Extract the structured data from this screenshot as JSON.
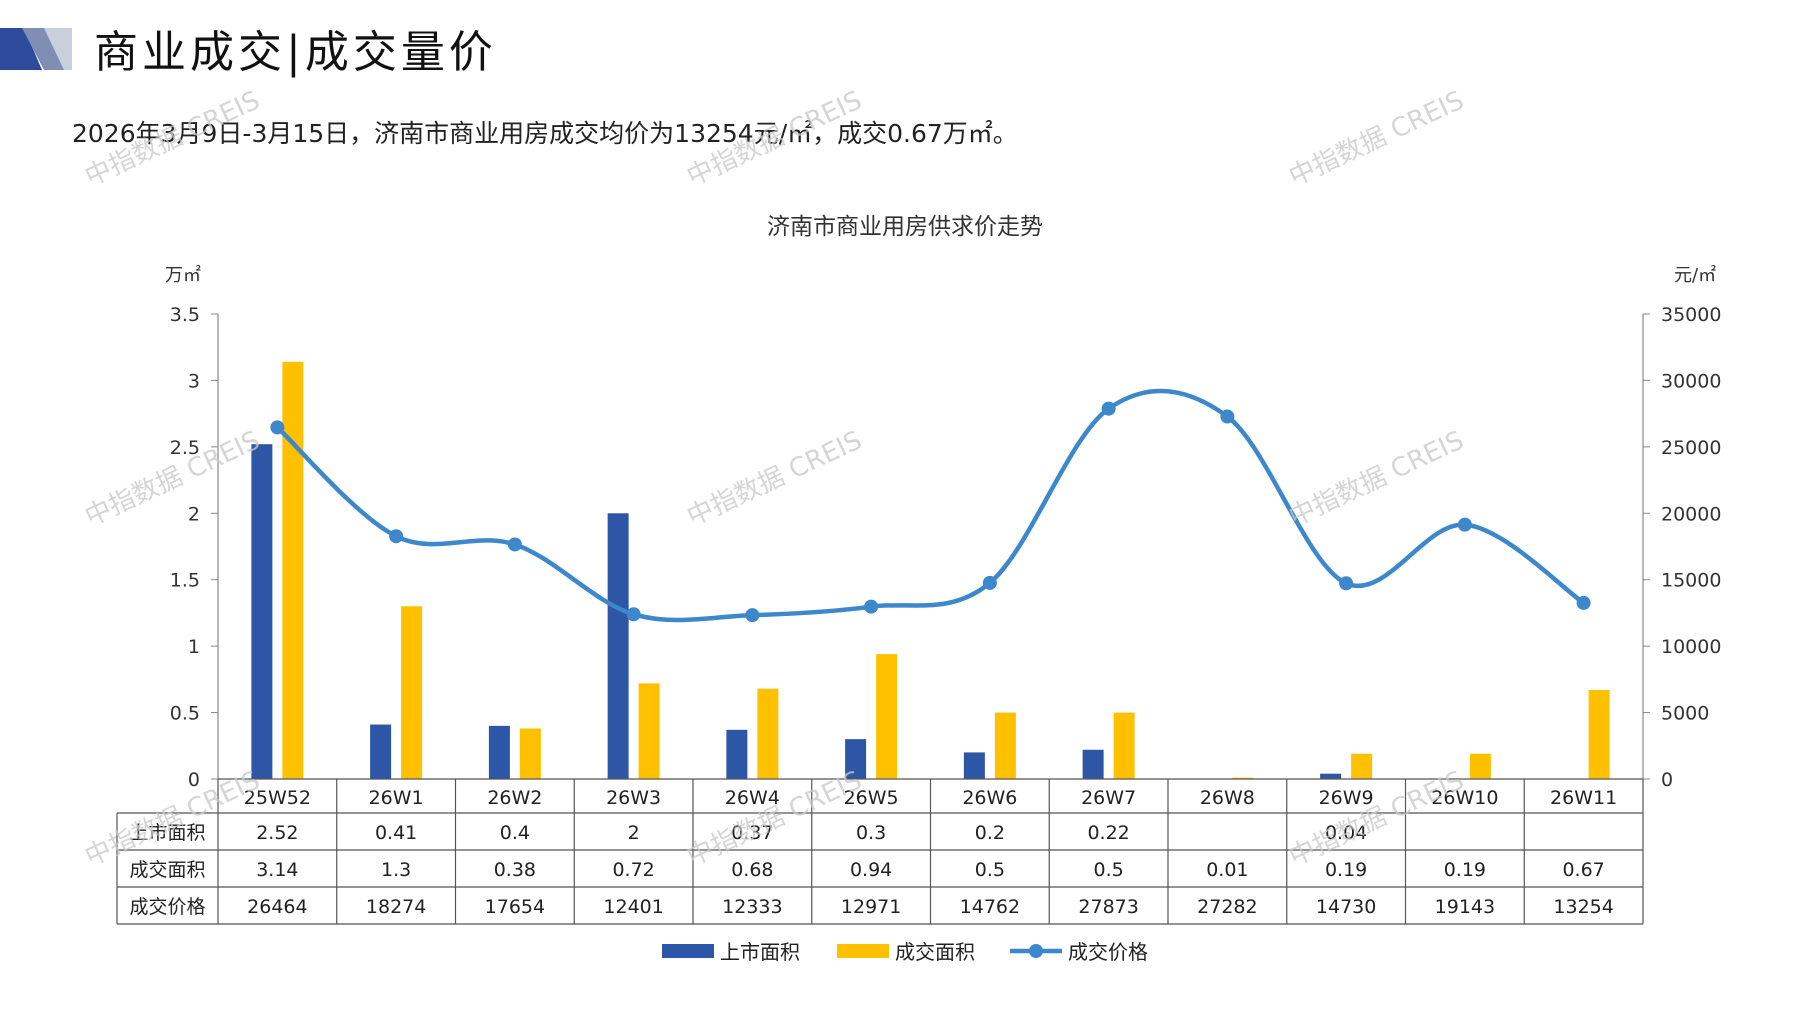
{
  "header": {
    "title": "商业成交|成交量价",
    "subtitle": "2026年3月9日-3月15日，济南市商业用房成交均价为13254元/㎡，成交0.67万㎡。"
  },
  "watermark": "中指数据 CREIS",
  "colors": {
    "supply": "#2E56A6",
    "deal_area": "#FFC000",
    "price": "#3D87CC",
    "header_dark": "#2E4A9A"
  },
  "chart_data": {
    "type": "bar",
    "title": "济南市商业用房供求价走势",
    "ylabel_left": "万㎡",
    "ylabel_right": "元/㎡",
    "ylim_left": [
      0,
      3.5
    ],
    "yticks_left": [
      "0",
      "0.5",
      "1",
      "1.5",
      "2",
      "2.5",
      "3",
      "3.5"
    ],
    "ylim_right": [
      0,
      35000
    ],
    "yticks_right": [
      "0",
      "5000",
      "10000",
      "15000",
      "20000",
      "25000",
      "30000",
      "35000"
    ],
    "categories": [
      "25W52",
      "26W1",
      "26W2",
      "26W3",
      "26W4",
      "26W5",
      "26W6",
      "26W7",
      "26W8",
      "26W9",
      "26W10",
      "26W11"
    ],
    "series": [
      {
        "name": "上市面积",
        "type": "bar",
        "axis": "left",
        "values": [
          2.52,
          0.41,
          0.4,
          2,
          0.37,
          0.3,
          0.2,
          0.22,
          null,
          0.04,
          null,
          null
        ]
      },
      {
        "name": "成交面积",
        "type": "bar",
        "axis": "left",
        "values": [
          3.14,
          1.3,
          0.38,
          0.72,
          0.68,
          0.94,
          0.5,
          0.5,
          0.01,
          0.19,
          0.19,
          0.67
        ]
      },
      {
        "name": "成交价格",
        "type": "line",
        "axis": "right",
        "values": [
          26464,
          18274,
          17654,
          12401,
          12333,
          12971,
          14762,
          27873,
          27282,
          14730,
          19143,
          13254
        ]
      }
    ],
    "table": {
      "rows": [
        {
          "label": "上市面积",
          "cells": [
            "2.52",
            "0.41",
            "0.4",
            "2",
            "0.37",
            "0.3",
            "0.2",
            "0.22",
            "",
            "0.04",
            "",
            ""
          ]
        },
        {
          "label": "成交面积",
          "cells": [
            "3.14",
            "1.3",
            "0.38",
            "0.72",
            "0.68",
            "0.94",
            "0.5",
            "0.5",
            "0.01",
            "0.19",
            "0.19",
            "0.67"
          ]
        },
        {
          "label": "成交价格",
          "cells": [
            "26464",
            "18274",
            "17654",
            "12401",
            "12333",
            "12971",
            "14762",
            "27873",
            "27282",
            "14730",
            "19143",
            "13254"
          ]
        }
      ]
    },
    "legend": {
      "position": "bottom",
      "items": [
        "上市面积",
        "成交面积",
        "成交价格"
      ]
    }
  }
}
